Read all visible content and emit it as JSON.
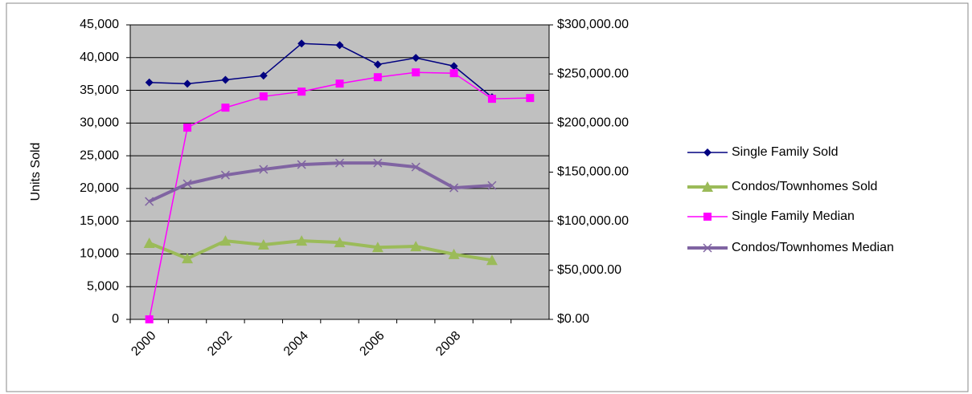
{
  "chart_data": {
    "type": "line",
    "categories": [
      "2000",
      null,
      "2002",
      null,
      "2004",
      null,
      "2006",
      null,
      "2008",
      null,
      null
    ],
    "ylabel": "Units Sold",
    "ylim": [
      0,
      45000
    ],
    "yticks": [
      0,
      {
        "value": 5000,
        "label": "5,000"
      },
      {
        "value": 10000,
        "label": "10,000"
      },
      {
        "value": 15000,
        "label": "15,000"
      },
      {
        "value": 20000,
        "label": "20,000"
      },
      {
        "value": 25000,
        "label": "25,000"
      },
      {
        "value": 30000,
        "label": "30,000"
      },
      {
        "value": 35000,
        "label": "35,000"
      },
      {
        "value": 40000,
        "label": "40,000"
      },
      {
        "value": 45000,
        "label": "45,000"
      }
    ],
    "y2lim": [
      0,
      300000
    ],
    "y2ticks": [
      {
        "value": 0,
        "label": "$0.00"
      },
      {
        "value": 50000,
        "label": "$50,000.00"
      },
      {
        "value": 100000,
        "label": "$100,000.00"
      },
      {
        "value": 150000,
        "label": "$150,000.00"
      },
      {
        "value": 200000,
        "label": "$200,000.00"
      },
      {
        "value": 250000,
        "label": "$250,000.00"
      },
      {
        "value": 300000,
        "label": "$300,000.00"
      }
    ],
    "grid": true,
    "legend": "right",
    "series": [
      {
        "name": "Single Family Sold",
        "color": "#000080",
        "marker": "diamond",
        "values": [
          36200,
          36000,
          36600,
          37250,
          42150,
          41900,
          38950,
          39950,
          38700,
          33950,
          null
        ]
      },
      {
        "name": "Condos/Townhomes Sold",
        "color": "#9bbb59",
        "marker": "triangle",
        "values": [
          11650,
          9300,
          12000,
          11400,
          12000,
          11750,
          11000,
          11150,
          9950,
          9050,
          null
        ]
      },
      {
        "name": "Single Family Median",
        "color": "#ff00ff",
        "marker": "square",
        "axis": "y2",
        "values": [
          0,
          195300,
          215700,
          227100,
          232000,
          240200,
          246700,
          251600,
          250800,
          224700,
          225500
        ]
      },
      {
        "name": "Condos/Townhomes Median",
        "color": "#8064a2",
        "marker": "x",
        "axis": "y2",
        "values": [
          120100,
          138100,
          147000,
          152800,
          157700,
          159300,
          159300,
          155200,
          134000,
          136400,
          null
        ]
      }
    ]
  }
}
